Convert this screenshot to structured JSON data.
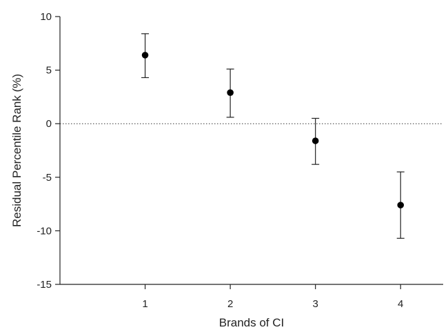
{
  "chart_data": {
    "type": "scatter",
    "title": "",
    "xlabel": "Brands of CI",
    "ylabel": "Residual Percentile Rank (%)",
    "x": [
      1,
      2,
      3,
      4
    ],
    "y": [
      6.4,
      2.9,
      -1.6,
      -7.6
    ],
    "error_low": [
      4.3,
      0.6,
      -3.8,
      -10.7
    ],
    "error_high": [
      8.4,
      5.1,
      0.5,
      -4.5
    ],
    "xlim": [
      0,
      4.5
    ],
    "ylim": [
      -15,
      10
    ],
    "xticks": [
      1,
      2,
      3,
      4
    ],
    "yticks": [
      10,
      5,
      0,
      -5,
      -10,
      -15
    ],
    "reference_line": {
      "y": 0,
      "style": "dotted"
    },
    "grid": false,
    "legend": false,
    "colors": {
      "marker": "#000000",
      "axis": "#222222",
      "errorbar": "#222222"
    }
  }
}
